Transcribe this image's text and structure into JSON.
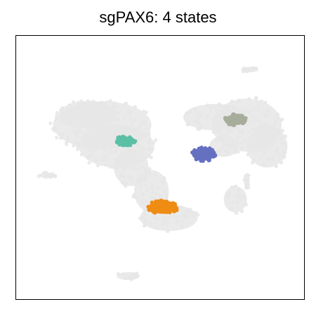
{
  "chart_data": {
    "type": "scatter",
    "title": "sgPAX6: 4 states",
    "xlabel": "",
    "ylabel": "",
    "grid": false,
    "legend": "none",
    "axis_ticks": false,
    "background_color": "#e6e6e6",
    "background_clusters": [
      {
        "cx": 0.3,
        "cy": 0.66,
        "rx": 0.17,
        "ry": 0.09
      },
      {
        "cx": 0.35,
        "cy": 0.58,
        "rx": 0.13,
        "ry": 0.08
      },
      {
        "cx": 0.25,
        "cy": 0.7,
        "rx": 0.1,
        "ry": 0.05
      },
      {
        "cx": 0.4,
        "cy": 0.5,
        "rx": 0.06,
        "ry": 0.07
      },
      {
        "cx": 0.47,
        "cy": 0.41,
        "rx": 0.06,
        "ry": 0.08
      },
      {
        "cx": 0.53,
        "cy": 0.31,
        "rx": 0.1,
        "ry": 0.05
      },
      {
        "cx": 0.69,
        "cy": 0.69,
        "rx": 0.11,
        "ry": 0.05
      },
      {
        "cx": 0.8,
        "cy": 0.66,
        "rx": 0.12,
        "ry": 0.1
      },
      {
        "cx": 0.87,
        "cy": 0.58,
        "rx": 0.07,
        "ry": 0.08
      },
      {
        "cx": 0.72,
        "cy": 0.58,
        "rx": 0.05,
        "ry": 0.04
      },
      {
        "cx": 0.76,
        "cy": 0.38,
        "rx": 0.04,
        "ry": 0.05
      },
      {
        "cx": 0.11,
        "cy": 0.47,
        "rx": 0.03,
        "ry": 0.01
      },
      {
        "cx": 0.81,
        "cy": 0.87,
        "rx": 0.03,
        "ry": 0.01
      },
      {
        "cx": 0.39,
        "cy": 0.09,
        "rx": 0.04,
        "ry": 0.015
      },
      {
        "cx": 0.8,
        "cy": 0.45,
        "rx": 0.01,
        "ry": 0.03
      }
    ],
    "highlight_clusters": [
      {
        "color": "#5bc0a5",
        "cx": 0.38,
        "cy": 0.6,
        "rx": 0.035,
        "ry": 0.017
      },
      {
        "color": "#6670c0",
        "cx": 0.65,
        "cy": 0.55,
        "rx": 0.04,
        "ry": 0.024
      },
      {
        "color": "#a7ad9b",
        "cx": 0.76,
        "cy": 0.68,
        "rx": 0.035,
        "ry": 0.02
      },
      {
        "color": "#ee8c14",
        "cx": 0.51,
        "cy": 0.35,
        "rx": 0.05,
        "ry": 0.025
      }
    ]
  }
}
